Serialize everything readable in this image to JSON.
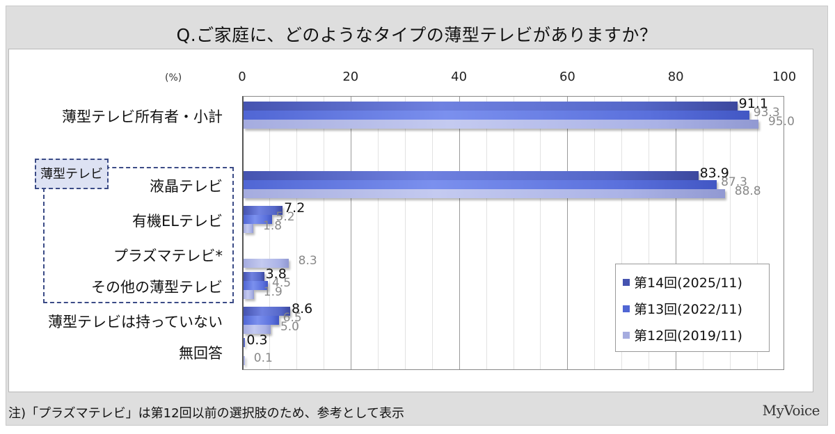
{
  "title": "Q.ご家庭に、どのようなタイプの薄型テレビがありますか？",
  "unit_label": "(%)",
  "axis_ticks": [
    "0",
    "20",
    "40",
    "60",
    "80",
    "100"
  ],
  "group_label": "薄型テレビ",
  "legend": [
    {
      "label": "第14回(2025/11)",
      "color": "#4553b0"
    },
    {
      "label": "第13回(2022/11)",
      "color": "#5066d4"
    },
    {
      "label": "第12回(2019/11)",
      "color": "#a5acdf"
    }
  ],
  "note": "注)「プラズマテレビ」は第12回以前の選択肢のため、参考として表示",
  "logo": "MyVoice",
  "categories": [
    {
      "label": "薄型テレビ所有者・小計",
      "v14": "91.1",
      "v13": "93.3",
      "v12": "95.0"
    },
    {
      "label": "液晶テレビ",
      "v14": "83.9",
      "v13": "87.3",
      "v12": "88.8"
    },
    {
      "label": "有機ELテレビ",
      "v14": "7.2",
      "v13": "5.2",
      "v12": "1.8"
    },
    {
      "label": "プラズマテレビ*",
      "v14": null,
      "v13": null,
      "v12": "8.3"
    },
    {
      "label": "その他の薄型テレビ",
      "v14": "3.8",
      "v13": "4.5",
      "v12": "1.9"
    },
    {
      "label": "薄型テレビは持っていない",
      "v14": "8.6",
      "v13": "6.5",
      "v12": "5.0"
    },
    {
      "label": "無回答",
      "v14": "0.3",
      "v13": null,
      "v12": "0.1"
    }
  ],
  "chart_data": {
    "type": "bar",
    "orientation": "horizontal",
    "title": "Q.ご家庭に、どのようなタイプの薄型テレビがありますか？",
    "xlabel": "(%)",
    "ylabel": "",
    "xlim": [
      0,
      100
    ],
    "x_ticks": [
      0,
      20,
      40,
      60,
      80,
      100
    ],
    "grid": true,
    "legend_position": "lower right inside",
    "categories": [
      "薄型テレビ所有者・小計",
      "液晶テレビ",
      "有機ELテレビ",
      "プラズマテレビ*",
      "その他の薄型テレビ",
      "薄型テレビは持っていない",
      "無回答"
    ],
    "series": [
      {
        "name": "第14回(2025/11)",
        "values": [
          91.1,
          83.9,
          7.2,
          null,
          3.8,
          8.6,
          0.3
        ]
      },
      {
        "name": "第13回(2022/11)",
        "values": [
          93.3,
          87.3,
          5.2,
          null,
          4.5,
          6.5,
          null
        ]
      },
      {
        "name": "第12回(2019/11)",
        "values": [
          95.0,
          88.8,
          1.8,
          8.3,
          1.9,
          5.0,
          0.1
        ]
      }
    ],
    "annotations": [
      "薄型テレビ (group bracket for 液晶テレビ / 有機ELテレビ / プラズマテレビ* / その他の薄型テレビ)",
      "注)「プラズマテレビ」は第12回以前の選択肢のため、参考として表示"
    ]
  }
}
